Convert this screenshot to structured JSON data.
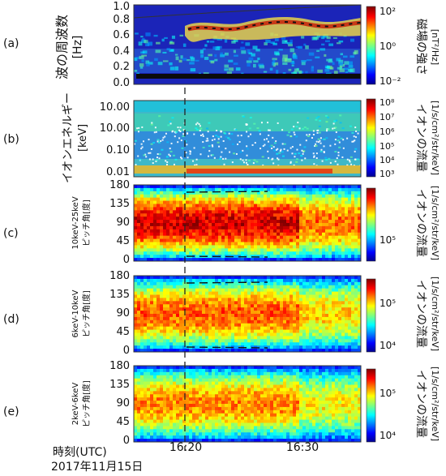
{
  "figure": {
    "time_label": "時刻(UTC)",
    "date_label": "2017年11月15日",
    "time_ticks": [
      "16:20",
      "16:30"
    ],
    "event_marker_time": "16:19"
  },
  "chart_data": [
    {
      "type": "heatmap",
      "panel": "(a)",
      "ylabel": "波の周波数",
      "yunit": "[Hz]",
      "yticks": [
        "0.0",
        "0.2",
        "0.4",
        "0.6",
        "0.8",
        "1.0"
      ],
      "ylim": [
        0.0,
        1.0
      ],
      "xticks": [
        "16:20",
        "16:30"
      ],
      "colorbar": {
        "label": "磁場の強さ",
        "unit": "[nT²/Hz]",
        "ticks": [
          "10²",
          "10⁰",
          "10⁻²"
        ],
        "range": [
          0.01,
          100
        ],
        "scale": "log"
      },
      "features": {
        "wave_band_hz": [
          0.6,
          0.85
        ]
      }
    },
    {
      "type": "heatmap",
      "panel": "(b)",
      "ylabel": "イオンエネルギー",
      "yunit": "[keV]",
      "yticks": [
        "10.00",
        "1.00",
        "0.10",
        "0.01"
      ],
      "yscale": "log",
      "colorbar": {
        "label": "イオンの流量",
        "unit": "[1/s/cm²/str/keV]",
        "ticks": [
          "10⁸",
          "10⁷",
          "10⁶",
          "10⁵",
          "10⁴",
          "10³"
        ],
        "range": [
          1000,
          100000000
        ],
        "scale": "log"
      }
    },
    {
      "type": "heatmap",
      "panel": "(c)",
      "ylabel": "ピッチ角[度]",
      "energy_label": "10keV-25keV",
      "yticks": [
        "180",
        "135",
        "90",
        "45",
        "0"
      ],
      "ylim": [
        0,
        180
      ],
      "colorbar": {
        "label": "イオンの流量",
        "unit": "[1/s/cm²/str/keV]",
        "ticks": [
          "10⁵"
        ],
        "scale": "log"
      }
    },
    {
      "type": "heatmap",
      "panel": "(d)",
      "ylabel": "ピッチ角[度]",
      "energy_label": "6keV-10keV",
      "yticks": [
        "180",
        "135",
        "90",
        "45",
        "0"
      ],
      "ylim": [
        0,
        180
      ],
      "colorbar": {
        "label": "イオンの流量",
        "unit": "[1/s/cm²/str/keV]",
        "ticks": [
          "10⁵",
          "10⁴"
        ],
        "scale": "log"
      }
    },
    {
      "type": "heatmap",
      "panel": "(e)",
      "ylabel": "ピッチ角[度]",
      "energy_label": "2keV-6keV",
      "yticks": [
        "180",
        "135",
        "90",
        "45",
        "0"
      ],
      "ylim": [
        0,
        180
      ],
      "colorbar": {
        "label": "イオンの流量",
        "unit": "[1/s/cm²/str/keV]",
        "ticks": [
          "10⁵",
          "10⁴"
        ],
        "scale": "log"
      }
    }
  ]
}
